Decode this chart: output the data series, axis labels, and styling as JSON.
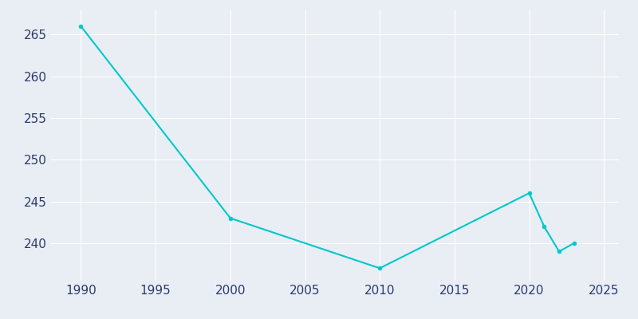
{
  "years": [
    1990,
    2000,
    2010,
    2020,
    2021,
    2022,
    2023
  ],
  "population": [
    266,
    243,
    237,
    246,
    242,
    239,
    240
  ],
  "line_color": "#00C8CC",
  "marker_color": "#00C8CC",
  "background_color": "#E8EEF4",
  "xlim": [
    1988,
    2026
  ],
  "ylim": [
    235.5,
    268
  ],
  "xticks": [
    1990,
    1995,
    2000,
    2005,
    2010,
    2015,
    2020,
    2025
  ],
  "yticks": [
    240,
    245,
    250,
    255,
    260,
    265
  ],
  "grid_color": "#ffffff",
  "tick_color": "#2d3a6e",
  "tick_fontsize": 11
}
